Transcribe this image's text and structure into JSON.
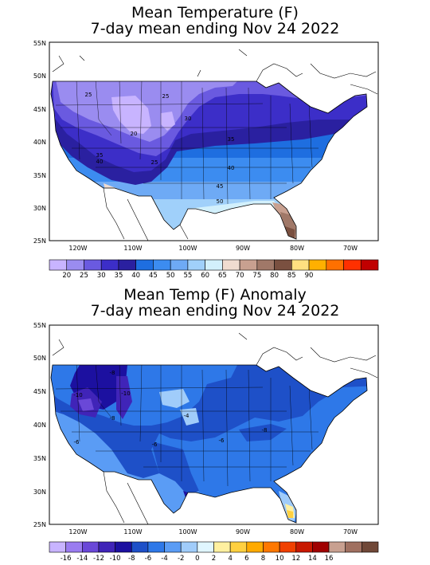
{
  "panels": [
    {
      "title_line1": "Mean Temperature (F)",
      "title_line2": "7-day mean ending Nov 24 2022",
      "lat_labels": [
        "55N",
        "50N",
        "45N",
        "40N",
        "35N",
        "30N",
        "25N"
      ],
      "lon_labels": [
        "120W",
        "110W",
        "100W",
        "90W",
        "80W",
        "70W"
      ],
      "colorbar_labels": [
        "20",
        "25",
        "30",
        "35",
        "40",
        "45",
        "50",
        "55",
        "60",
        "65",
        "70",
        "75",
        "80",
        "85",
        "90"
      ],
      "colorbar_colors": [
        "#c8b4ff",
        "#9a8cf0",
        "#6a5ae0",
        "#3c2ec8",
        "#2a20a0",
        "#1e6ee0",
        "#3c8cf0",
        "#6eaaf5",
        "#a0d0fa",
        "#d2f0fc",
        "#f0dcd0",
        "#c8a090",
        "#a07868",
        "#7a5040",
        "#ffe080",
        "#ffb000",
        "#ff7000",
        "#ff3000",
        "#c00000"
      ],
      "contour_labels": [
        "25",
        "25",
        "20",
        "30",
        "25",
        "35",
        "35",
        "40",
        "40",
        "45",
        "50"
      ]
    },
    {
      "title_line1": "Mean Temp (F) Anomaly",
      "title_line2": "7-day mean ending Nov 24 2022",
      "lat_labels": [
        "55N",
        "50N",
        "45N",
        "40N",
        "35N",
        "30N",
        "25N"
      ],
      "lon_labels": [
        "120W",
        "110W",
        "100W",
        "90W",
        "80W",
        "70W"
      ],
      "colorbar_labels": [
        "-16",
        "-14",
        "-12",
        "-10",
        "-8",
        "-6",
        "-4",
        "-2",
        "0",
        "2",
        "4",
        "6",
        "8",
        "10",
        "12",
        "14",
        "16"
      ],
      "colorbar_colors": [
        "#c8b4ff",
        "#9a7cf0",
        "#6a48d8",
        "#4024b8",
        "#1c10a0",
        "#1e50c8",
        "#2e78e8",
        "#5a9cf5",
        "#a0ccfa",
        "#e0f6ff",
        "#fff0a0",
        "#ffd040",
        "#ffaa00",
        "#ff7800",
        "#f04000",
        "#c81800",
        "#a00000",
        "#c8a090",
        "#a07060",
        "#704838"
      ],
      "contour_labels": [
        "-8",
        "-10",
        "-10",
        "-8",
        "-4",
        "-6",
        "-6",
        "-6",
        "-8"
      ]
    }
  ]
}
